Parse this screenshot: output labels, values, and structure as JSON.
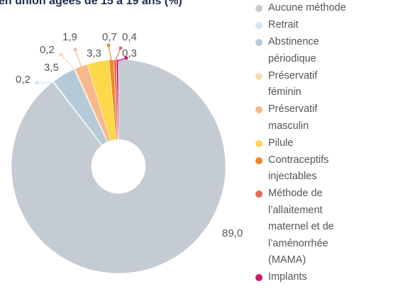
{
  "chart_data": {
    "type": "donut",
    "title": "en union âgées de 15 à 19 ans (%)",
    "categories": [
      "Aucune méthode",
      "Retrait",
      "Abstinence périodique",
      "Préservatif féminin",
      "Préservatif masculin",
      "Pilule",
      "Contraceptifs injectables",
      "Méthode de l’allaitement maternel et de l’aménorrhée (MAMA)",
      "Implants"
    ],
    "values": [
      89.0,
      0.2,
      3.5,
      0.2,
      1.9,
      3.3,
      0.7,
      0.4,
      0.3
    ],
    "value_labels": [
      "89,0",
      "0,2",
      "3,5",
      "0,2",
      "1,9",
      "3,3",
      "0,7",
      "0,4",
      "0,3"
    ],
    "colors": [
      "#c5cbd3",
      "#cfe6f2",
      "#b5cad8",
      "#fbd9b0",
      "#f6b98b",
      "#fdd84a",
      "#ef8a22",
      "#e8695a",
      "#d5136a"
    ],
    "legend": "right"
  }
}
